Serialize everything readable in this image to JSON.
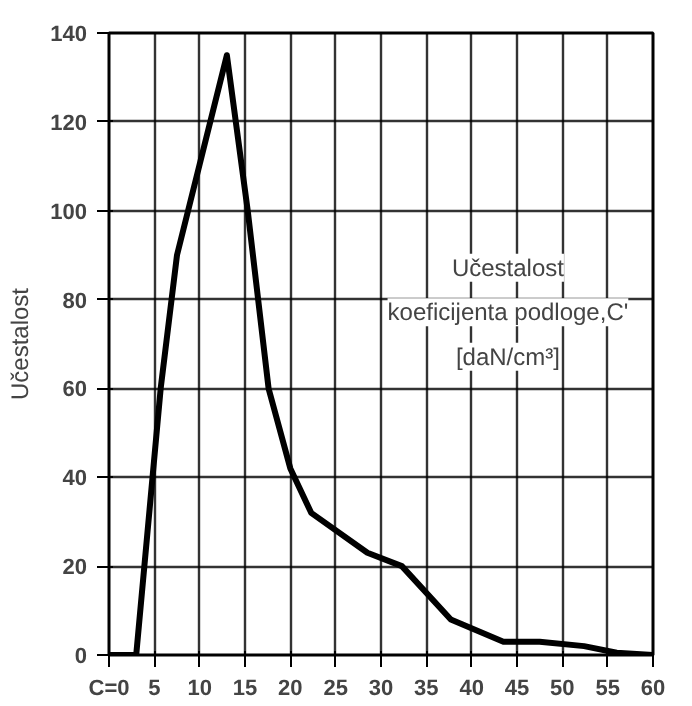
{
  "chart_data": {
    "type": "line",
    "ylabel": "Učestalost",
    "annotations": [
      "Učestalost",
      "koeficijenta podloge,C'",
      "[daN/cm³]"
    ],
    "x": [
      0,
      3,
      5.7,
      7.5,
      13,
      15.3,
      17.6,
      20,
      22.3,
      28.5,
      32.3,
      37.7,
      43.5,
      47.5,
      52.4,
      56,
      60
    ],
    "series": [
      {
        "color": "#000000",
        "values": [
          0,
          0,
          60,
          90,
          135,
          100,
          60,
          42,
          32,
          23,
          20,
          8,
          3,
          3,
          2,
          0.5,
          0
        ]
      }
    ],
    "xlim": [
      0,
      60
    ],
    "ylim": [
      0,
      140
    ],
    "xticks": [
      {
        "value": 0,
        "label": "C=0"
      },
      5,
      10,
      15,
      20,
      25,
      30,
      35,
      40,
      45,
      50,
      55,
      60
    ],
    "yticks": [
      0,
      20,
      40,
      60,
      80,
      100,
      120,
      140
    ],
    "grid": true,
    "marker": "none",
    "line_style": "solid"
  }
}
